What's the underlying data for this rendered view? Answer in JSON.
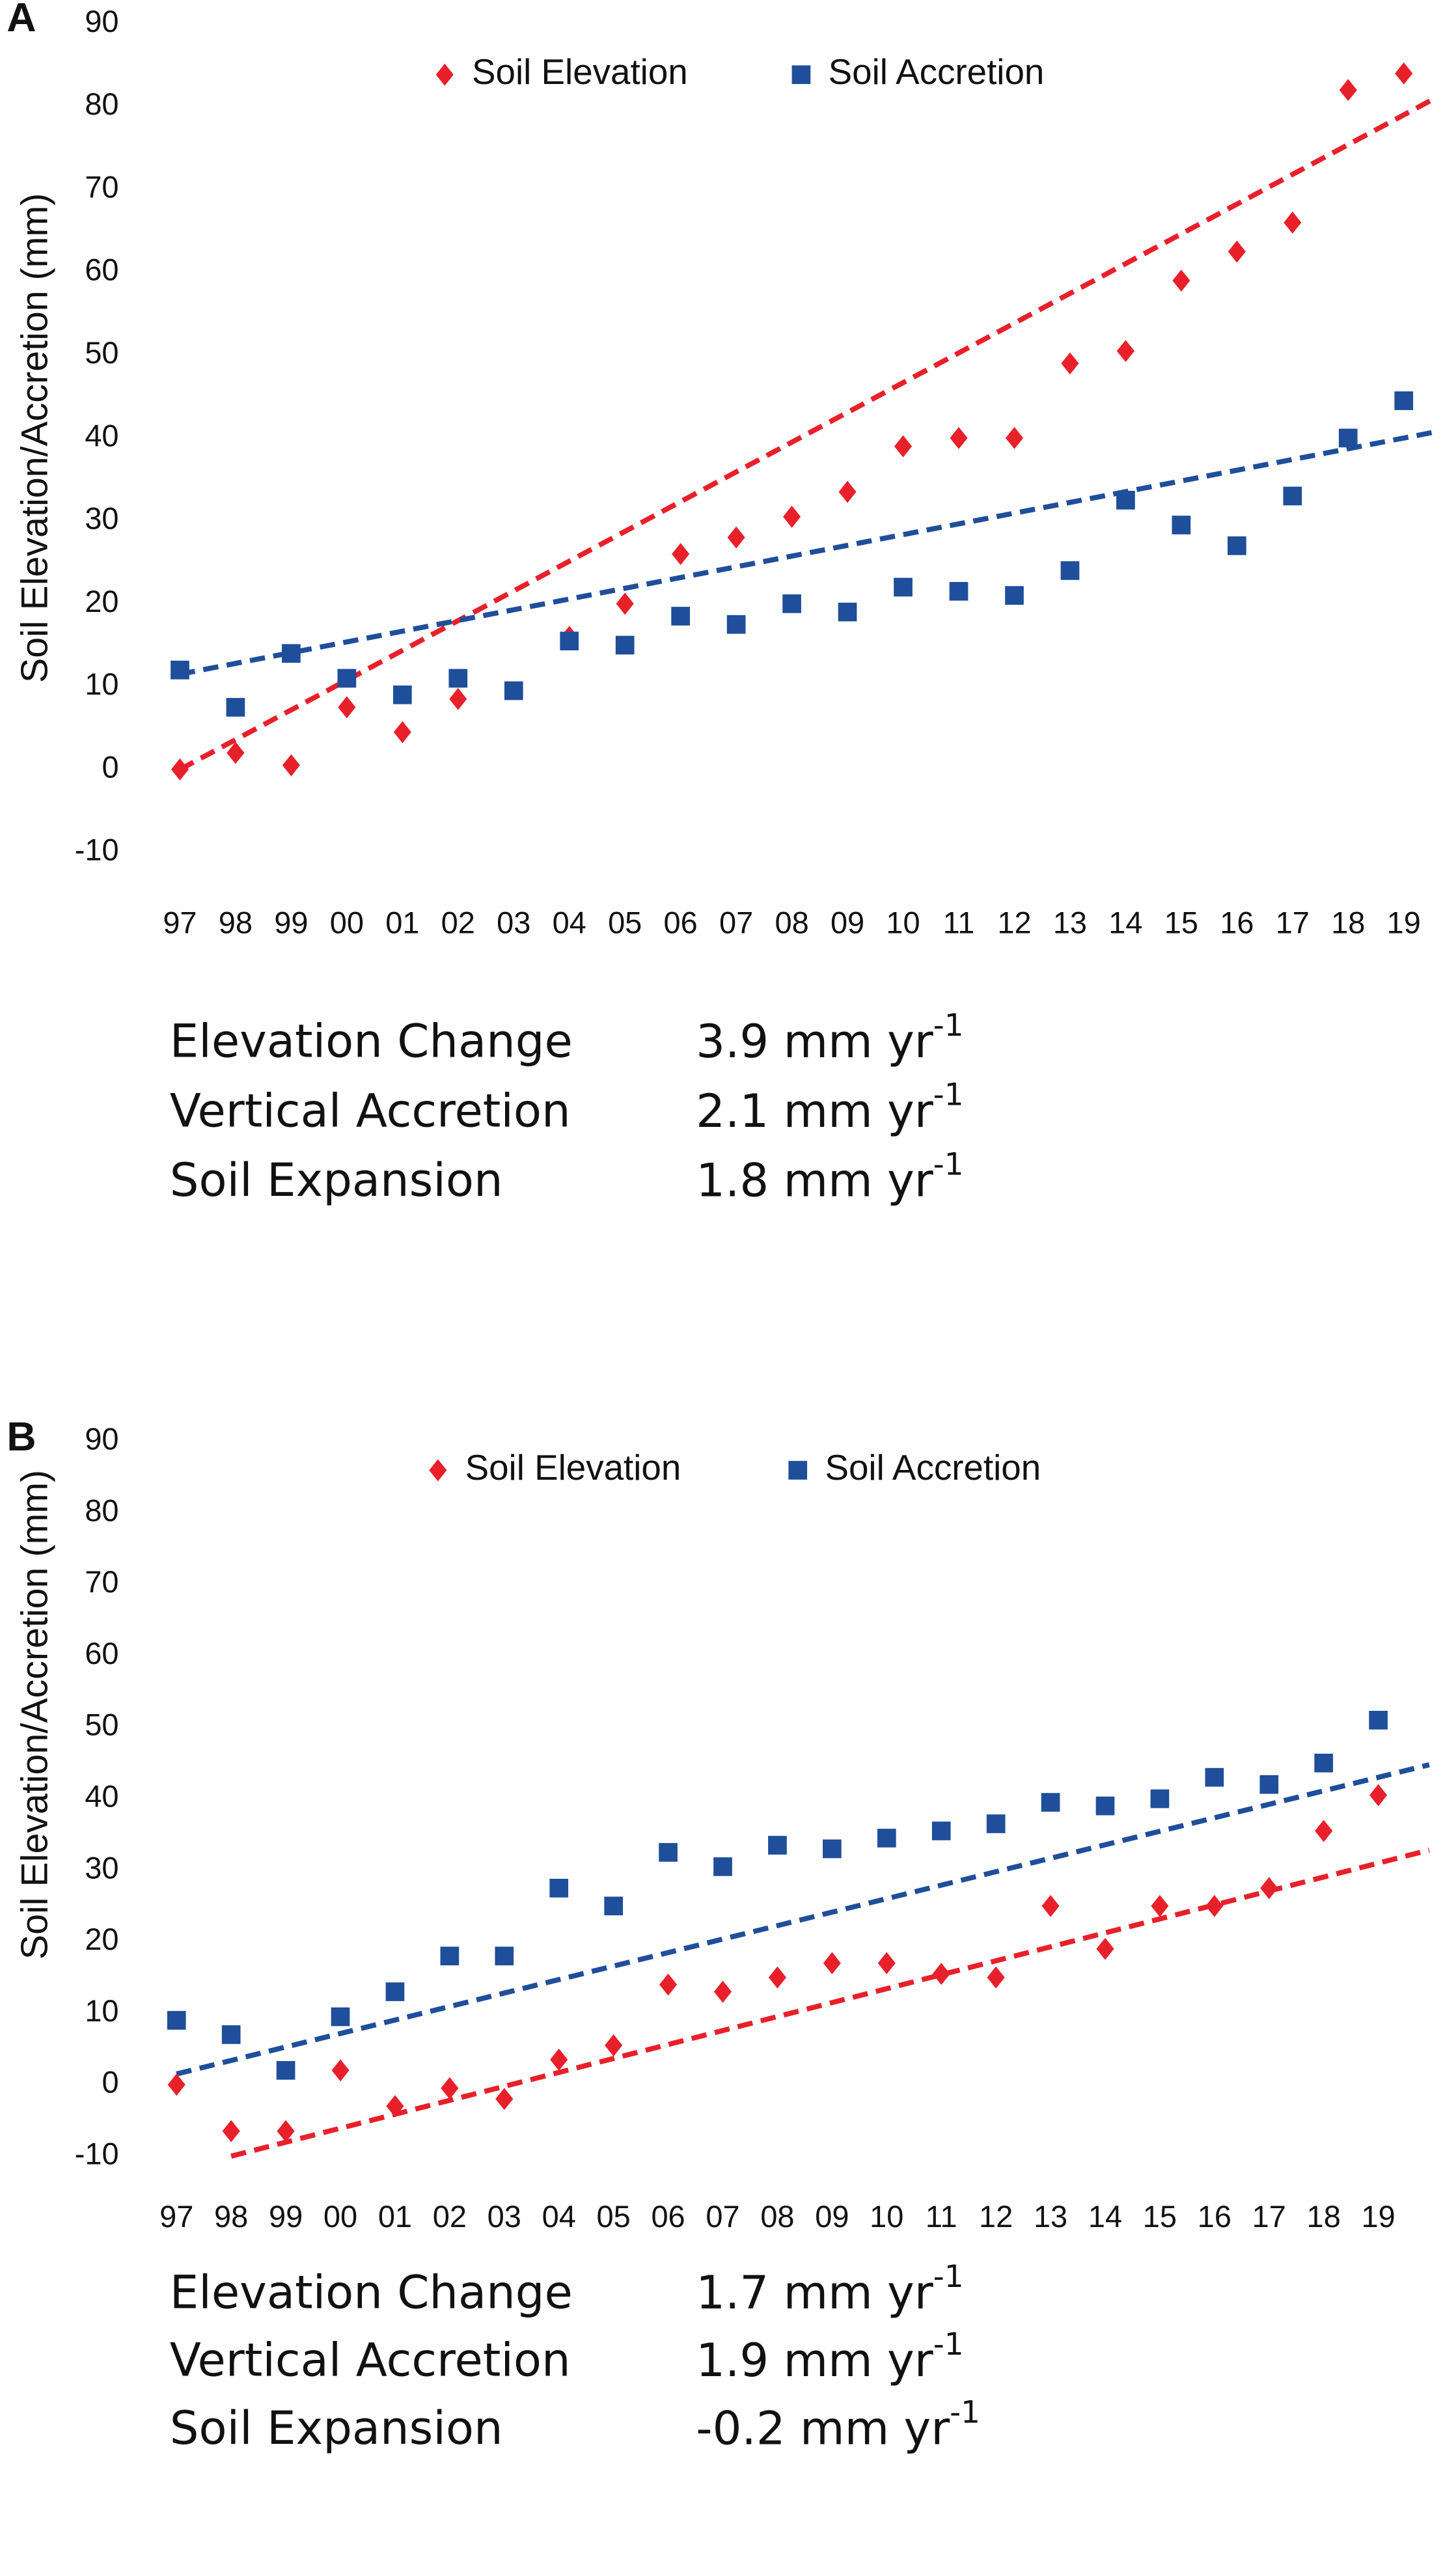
{
  "chart_data": [
    {
      "type": "scatter",
      "panel": "A",
      "ylabel": "Soil Elevation/Accretion (mm)",
      "categories": [
        "97",
        "98",
        "99",
        "00",
        "01",
        "02",
        "03",
        "04",
        "05",
        "06",
        "07",
        "08",
        "09",
        "10",
        "11",
        "12",
        "13",
        "14",
        "15",
        "16",
        "17",
        "18",
        "19"
      ],
      "ylim": [
        -10,
        90
      ],
      "yticks": [
        -10,
        0,
        10,
        20,
        30,
        40,
        50,
        60,
        70,
        80,
        90
      ],
      "series": [
        {
          "name": "Soil Elevation",
          "marker": "diamond",
          "color": "#e8202a",
          "values": [
            0,
            2,
            0.5,
            7.5,
            4.5,
            8.5,
            null,
            16,
            20,
            26,
            28,
            30.5,
            33.5,
            39,
            40,
            40,
            49,
            50.5,
            59,
            62.5,
            66,
            82,
            84
          ]
        },
        {
          "name": "Soil Accretion",
          "marker": "square",
          "color": "#1f4e9a",
          "values": [
            12,
            7.5,
            14,
            11,
            9,
            11,
            9.5,
            15.5,
            15,
            18.5,
            17.5,
            20,
            19,
            22,
            21.5,
            21,
            24,
            32.5,
            29.5,
            27,
            33,
            40,
            44.5
          ]
        }
      ],
      "trendlines": [
        {
          "color": "#e8202a",
          "x": [
            "97",
            "19"
          ],
          "values": [
            0,
            79
          ]
        },
        {
          "color": "#1f4e9a",
          "x": [
            "97",
            "19"
          ],
          "values": [
            11.5,
            40
          ]
        }
      ],
      "stats": [
        {
          "label": "Elevation Change",
          "value": "3.9 mm yr",
          "exp": "-1"
        },
        {
          "label": "Vertical Accretion",
          "value": "2.1 mm yr",
          "exp": "-1"
        },
        {
          "label": "Soil Expansion",
          "value": "1.8 mm yr",
          "exp": "-1"
        }
      ]
    },
    {
      "type": "scatter",
      "panel": "B",
      "ylabel": "Soil Elevation/Accretion (mm)",
      "categories": [
        "97",
        "98",
        "99",
        "00",
        "01",
        "02",
        "03",
        "04",
        "05",
        "06",
        "07",
        "08",
        "09",
        "10",
        "11",
        "12",
        "13",
        "14",
        "15",
        "16",
        "17",
        "18",
        "19"
      ],
      "ylim": [
        -10,
        90
      ],
      "yticks": [
        -10,
        0,
        10,
        20,
        30,
        40,
        50,
        60,
        70,
        80,
        90
      ],
      "series": [
        {
          "name": "Soil Elevation",
          "marker": "diamond",
          "color": "#e8202a",
          "values": [
            0,
            -6.5,
            -6.5,
            2,
            -3,
            -0.5,
            -2,
            3.5,
            5.5,
            14,
            13,
            15,
            17,
            17,
            15.5,
            15,
            25,
            19,
            25,
            25,
            27.5,
            35.5,
            40.5
          ]
        },
        {
          "name": "Soil Accretion",
          "marker": "square",
          "color": "#1f4e9a",
          "values": [
            9,
            7,
            2,
            9.5,
            13,
            18,
            18,
            27.5,
            25,
            32.5,
            30.5,
            33.5,
            33,
            34.5,
            35.5,
            36.5,
            39.5,
            39,
            40,
            43,
            42,
            45,
            51
          ]
        }
      ],
      "trendlines": [
        {
          "color": "#e8202a",
          "x": [
            "98",
            "19"
          ],
          "values": [
            -10,
            31
          ]
        },
        {
          "color": "#1f4e9a",
          "x": [
            "97",
            "19"
          ],
          "values": [
            1.5,
            43
          ]
        }
      ],
      "stats": [
        {
          "label": "Elevation Change",
          "value": "1.7 mm yr",
          "exp": "-1"
        },
        {
          "label": "Vertical Accretion",
          "value": "1.9 mm yr",
          "exp": "-1"
        },
        {
          "label": "Soil Expansion",
          "value": "-0.2 mm yr",
          "exp": "-1"
        }
      ]
    }
  ]
}
